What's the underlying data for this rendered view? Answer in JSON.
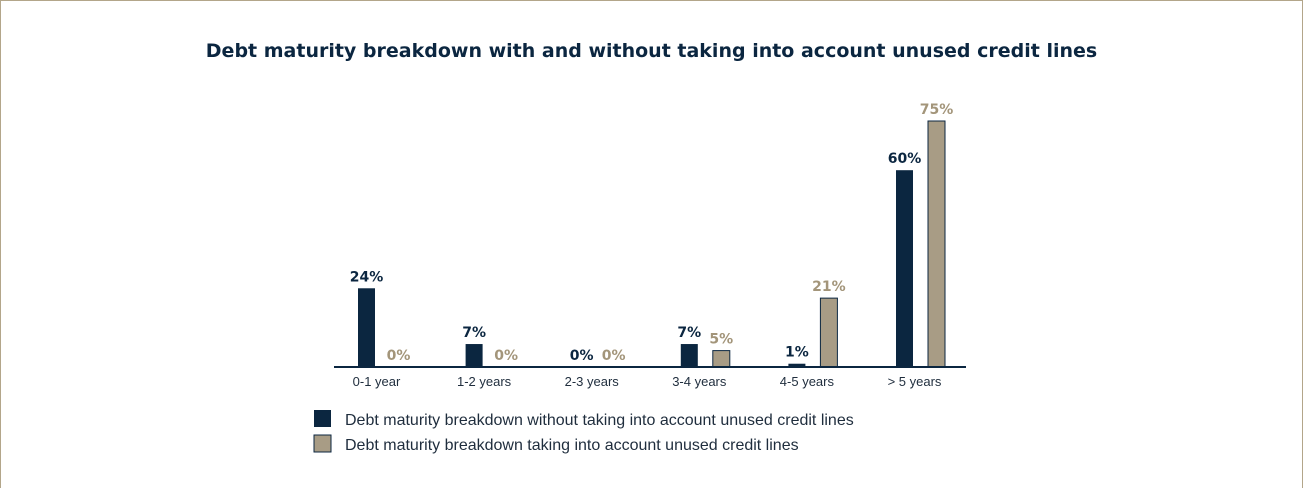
{
  "chart_data": {
    "type": "bar",
    "title": "Debt maturity breakdown with and without taking into account unused credit lines",
    "xlabel": "",
    "ylabel": "",
    "ylim": [
      0,
      80
    ],
    "grid": false,
    "legend_position": "bottom-left",
    "categories": [
      "0-1 year",
      "1-2 years",
      "2-3 years",
      "3-4 years",
      "4-5 years",
      "> 5 years"
    ],
    "series": [
      {
        "name": "Debt maturity breakdown without taking into account unused credit lines",
        "values": [
          24,
          7,
          0,
          7,
          1,
          60
        ],
        "labels": [
          "24%",
          "7%",
          "0%",
          "7%",
          "1%",
          "60%"
        ],
        "color": "#0b2640"
      },
      {
        "name": "Debt maturity breakdown taking into account unused credit lines",
        "values": [
          0,
          0,
          0,
          5,
          21,
          75
        ],
        "labels": [
          "0%",
          "0%",
          "0%",
          "5%",
          "21%",
          "75%"
        ],
        "color": "#a89c85",
        "label_color": "#a3957a"
      }
    ]
  }
}
